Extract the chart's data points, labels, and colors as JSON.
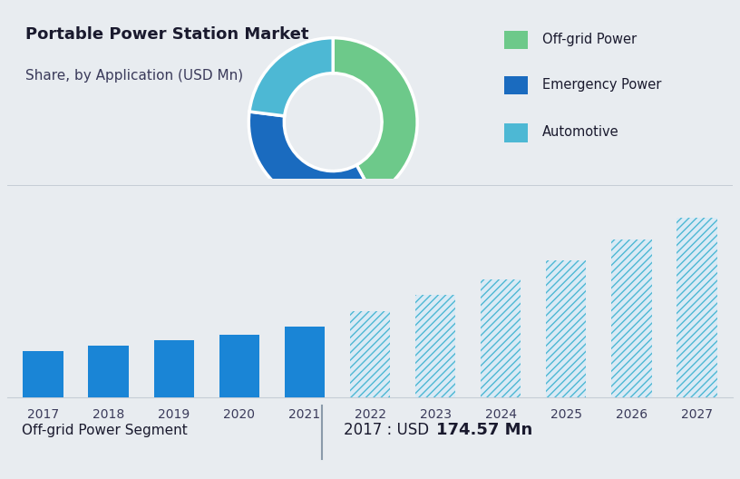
{
  "title": "Portable Power Station Market",
  "subtitle": "Share, by Application (USD Mn)",
  "title_fontsize": 13,
  "subtitle_fontsize": 11,
  "top_bg_color": "#ccd6e0",
  "overall_bg_color": "#e8ecf0",
  "donut_labels": [
    "Off-grid Power",
    "Emergency Power",
    "Automotive"
  ],
  "donut_values": [
    42,
    35,
    23
  ],
  "donut_colors": [
    "#6dc98a",
    "#1a6bbf",
    "#4db8d4"
  ],
  "donut_legend_colors": [
    "#6dc98a",
    "#1a6bbf",
    "#4db8d4"
  ],
  "bar_years": [
    2017,
    2018,
    2019,
    2020,
    2021,
    2022,
    2023,
    2024,
    2025,
    2026,
    2027
  ],
  "bar_values": [
    175,
    195,
    215,
    235,
    265,
    325,
    385,
    445,
    515,
    595,
    675
  ],
  "bar_solid_color": "#1a85d6",
  "bar_hatch_edgecolor": "#4db8d4",
  "hatch_pattern": "////",
  "hatch_facecolor": "#daeaf5",
  "footer_left": "Off-grid Power Segment",
  "footer_year_label": "2017 : USD ",
  "footer_value_bold": "174.57 Mn",
  "footer_fontsize": 11,
  "footer_value_fontsize": 12,
  "grid_color": "#c5cdd6",
  "axis_label_fontsize": 10,
  "bar_bg_color": "#e8ecf0",
  "separator_color": "#8a9aaa"
}
